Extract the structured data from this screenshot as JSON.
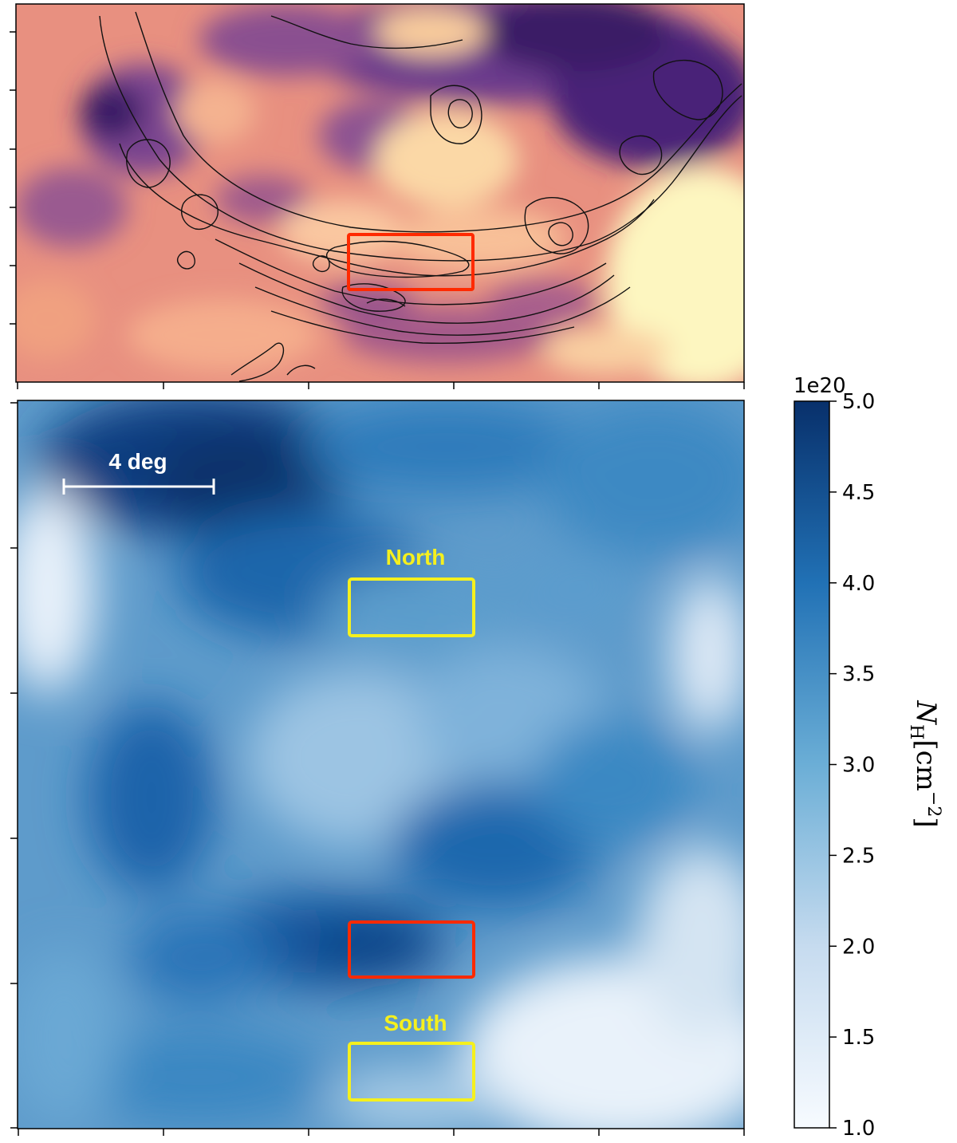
{
  "top_panel": {
    "name": "contour-overlay-map",
    "cmap": "magma-like",
    "colors": {
      "light": "#fdf8c4",
      "peach": "#f7b88a",
      "rose": "#e27e7c",
      "mauve": "#a0588f",
      "purple": "#5d2f86",
      "dark": "#2a1450"
    },
    "box_color": "#ff2a00"
  },
  "bottom_panel": {
    "name": "column-density-map",
    "cmap": "Blues",
    "scale_bar_label": "4 deg",
    "north_label": "North",
    "south_label": "South",
    "box_colors": {
      "regions": "#f5f01e",
      "center": "#ff2a00"
    }
  },
  "colorbar": {
    "multiplier": "1e20",
    "label": "N_H [cm^-2]",
    "label_main": "N",
    "label_sub": "H",
    "label_unit": "[cm",
    "label_exp": "−2",
    "label_close": "]",
    "vmin": 1.0,
    "vmax": 5.0,
    "ticks": [
      "1.0",
      "1.5",
      "2.0",
      "2.5",
      "3.0",
      "3.5",
      "4.0",
      "4.5",
      "5.0"
    ]
  }
}
